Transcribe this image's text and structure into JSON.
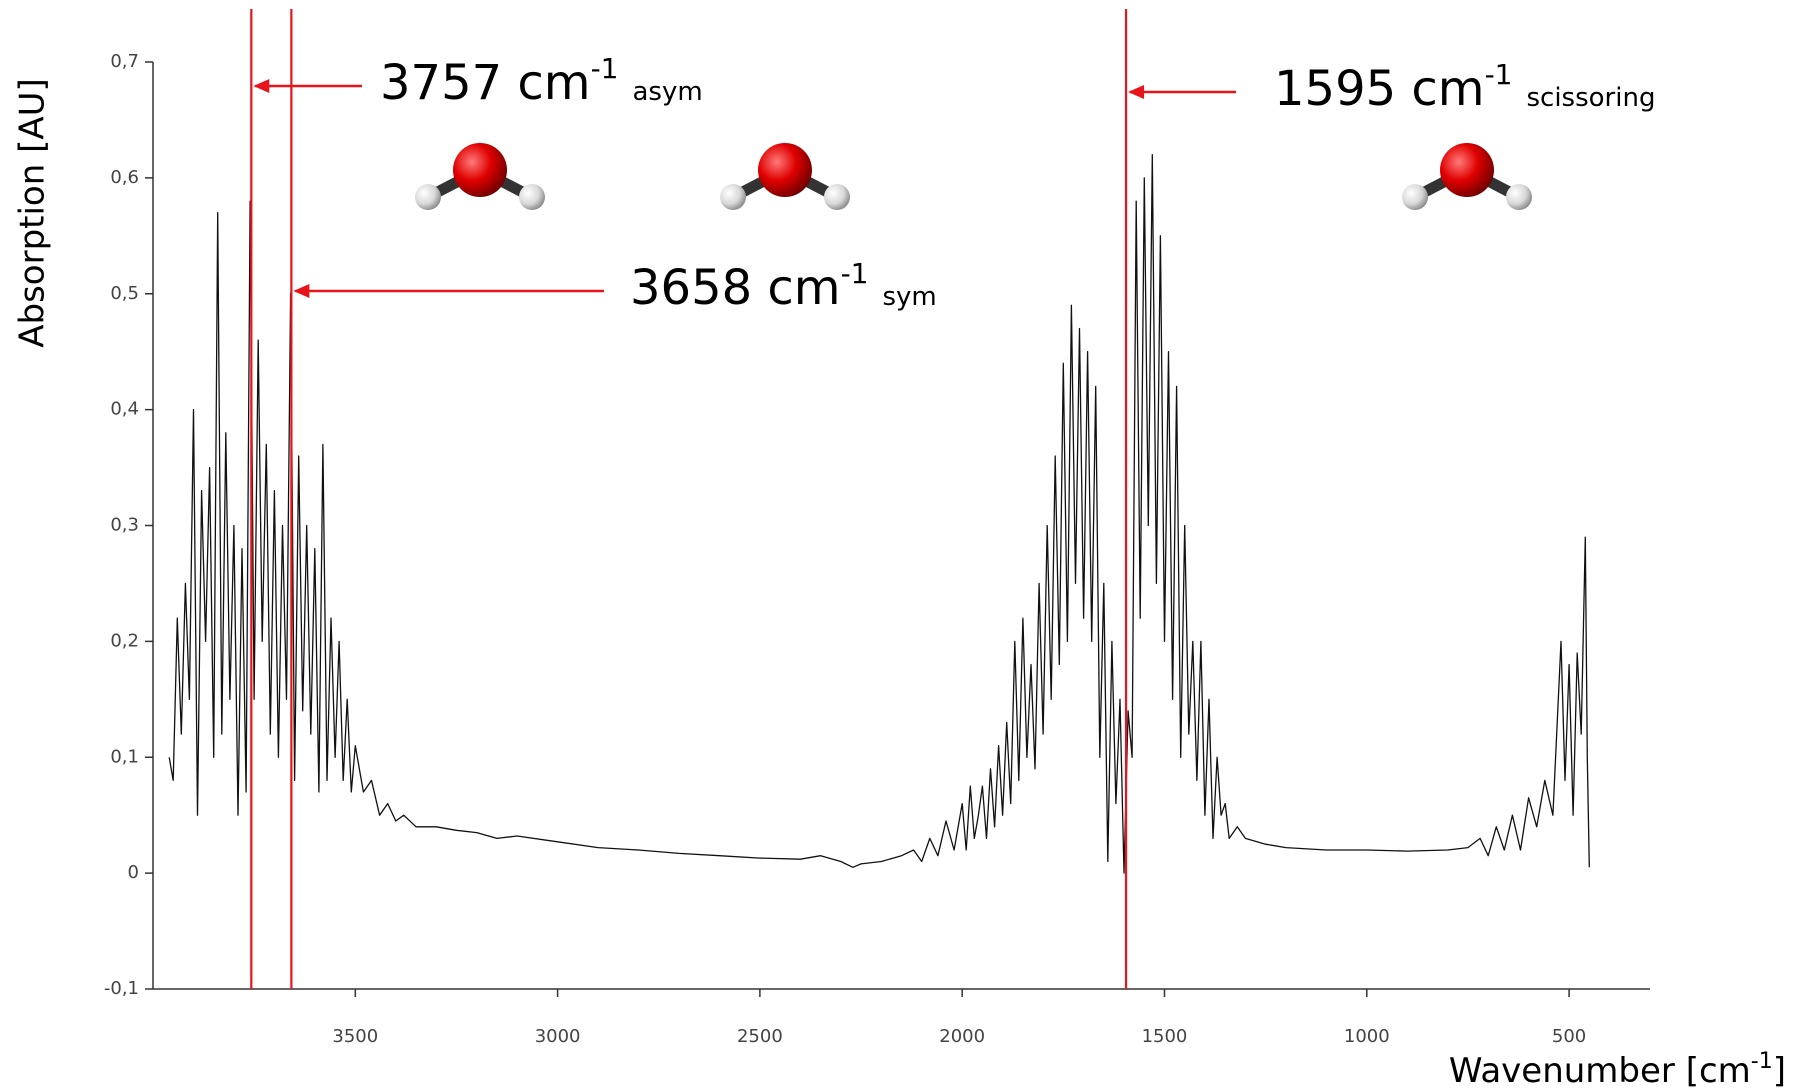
{
  "chart_data": {
    "type": "line",
    "y_label": "Absorption [AU]",
    "x_label": {
      "text": "Wavenumber [cm",
      "sup": "-1",
      "tail": "]"
    },
    "xlim": [
      4000,
      300
    ],
    "ylim": [
      -0.1,
      0.7
    ],
    "xticks": [
      3500,
      3000,
      2500,
      2000,
      1500,
      1000,
      500
    ],
    "yticks": [
      {
        "value": -0.1,
        "label": "-0,1"
      },
      0,
      {
        "value": 0.1,
        "label": "0,1"
      },
      {
        "value": 0.2,
        "label": "0,2"
      },
      {
        "value": 0.3,
        "label": "0,3"
      },
      {
        "value": 0.4,
        "label": "0,4"
      },
      {
        "value": 0.5,
        "label": "0,5"
      },
      {
        "value": 0.6,
        "label": "0,6"
      },
      {
        "value": 0.7,
        "label": "0,7"
      }
    ],
    "color": "#111111",
    "annotation_color": "#e8141c",
    "annotations": [
      {
        "x": 3757,
        "text": "3757 cm",
        "sup": "-1",
        "sub": "asym"
      },
      {
        "x": 3658,
        "text": "3658 cm",
        "sup": "-1",
        "sub": "sym"
      },
      {
        "x": 1595,
        "text": "1595 cm",
        "sup": "-1",
        "sub": "scissoring"
      }
    ],
    "x": [
      3960,
      3950,
      3940,
      3930,
      3920,
      3910,
      3900,
      3890,
      3880,
      3870,
      3860,
      3850,
      3840,
      3830,
      3820,
      3810,
      3800,
      3790,
      3780,
      3770,
      3760,
      3750,
      3740,
      3730,
      3720,
      3710,
      3700,
      3690,
      3680,
      3670,
      3660,
      3650,
      3640,
      3630,
      3620,
      3610,
      3600,
      3590,
      3580,
      3570,
      3560,
      3550,
      3540,
      3530,
      3520,
      3510,
      3500,
      3480,
      3460,
      3440,
      3420,
      3400,
      3380,
      3350,
      3300,
      3250,
      3200,
      3150,
      3100,
      3000,
      2900,
      2800,
      2700,
      2600,
      2500,
      2400,
      2350,
      2300,
      2270,
      2250,
      2200,
      2150,
      2120,
      2100,
      2080,
      2060,
      2040,
      2020,
      2000,
      1990,
      1980,
      1970,
      1960,
      1950,
      1940,
      1930,
      1920,
      1910,
      1900,
      1890,
      1880,
      1870,
      1860,
      1850,
      1840,
      1830,
      1820,
      1810,
      1800,
      1790,
      1780,
      1770,
      1760,
      1750,
      1740,
      1730,
      1720,
      1710,
      1700,
      1690,
      1680,
      1670,
      1660,
      1650,
      1640,
      1630,
      1620,
      1610,
      1600,
      1590,
      1580,
      1570,
      1560,
      1550,
      1540,
      1530,
      1520,
      1510,
      1500,
      1490,
      1480,
      1470,
      1460,
      1450,
      1440,
      1430,
      1420,
      1410,
      1400,
      1390,
      1380,
      1370,
      1360,
      1350,
      1340,
      1320,
      1300,
      1250,
      1200,
      1100,
      1000,
      900,
      800,
      750,
      720,
      700,
      680,
      660,
      640,
      620,
      600,
      580,
      560,
      540,
      520,
      510,
      500,
      490,
      480,
      470,
      460,
      455,
      450
    ],
    "values": [
      0.1,
      0.08,
      0.22,
      0.12,
      0.25,
      0.15,
      0.4,
      0.05,
      0.33,
      0.2,
      0.35,
      0.1,
      0.57,
      0.12,
      0.38,
      0.15,
      0.3,
      0.05,
      0.28,
      0.07,
      0.58,
      0.15,
      0.46,
      0.2,
      0.37,
      0.12,
      0.33,
      0.1,
      0.3,
      0.15,
      0.5,
      0.08,
      0.36,
      0.14,
      0.3,
      0.12,
      0.28,
      0.07,
      0.37,
      0.08,
      0.22,
      0.1,
      0.2,
      0.08,
      0.15,
      0.07,
      0.11,
      0.07,
      0.08,
      0.05,
      0.06,
      0.045,
      0.05,
      0.04,
      0.04,
      0.037,
      0.035,
      0.03,
      0.032,
      0.027,
      0.022,
      0.02,
      0.017,
      0.015,
      0.013,
      0.012,
      0.015,
      0.01,
      0.005,
      0.008,
      0.01,
      0.015,
      0.02,
      0.01,
      0.03,
      0.015,
      0.045,
      0.02,
      0.06,
      0.02,
      0.075,
      0.03,
      0.05,
      0.075,
      0.03,
      0.09,
      0.04,
      0.11,
      0.05,
      0.13,
      0.06,
      0.2,
      0.08,
      0.22,
      0.1,
      0.18,
      0.09,
      0.25,
      0.12,
      0.3,
      0.15,
      0.36,
      0.18,
      0.44,
      0.2,
      0.49,
      0.25,
      0.47,
      0.22,
      0.45,
      0.2,
      0.42,
      0.1,
      0.25,
      0.01,
      0.2,
      0.06,
      0.15,
      0.0,
      0.14,
      0.1,
      0.58,
      0.22,
      0.6,
      0.3,
      0.62,
      0.25,
      0.55,
      0.2,
      0.45,
      0.15,
      0.42,
      0.1,
      0.3,
      0.12,
      0.2,
      0.08,
      0.2,
      0.05,
      0.15,
      0.03,
      0.1,
      0.05,
      0.06,
      0.03,
      0.04,
      0.03,
      0.025,
      0.022,
      0.02,
      0.02,
      0.019,
      0.02,
      0.022,
      0.03,
      0.015,
      0.04,
      0.02,
      0.05,
      0.02,
      0.065,
      0.04,
      0.08,
      0.05,
      0.2,
      0.08,
      0.18,
      0.05,
      0.19,
      0.12,
      0.29,
      0.1,
      0.005
    ]
  }
}
